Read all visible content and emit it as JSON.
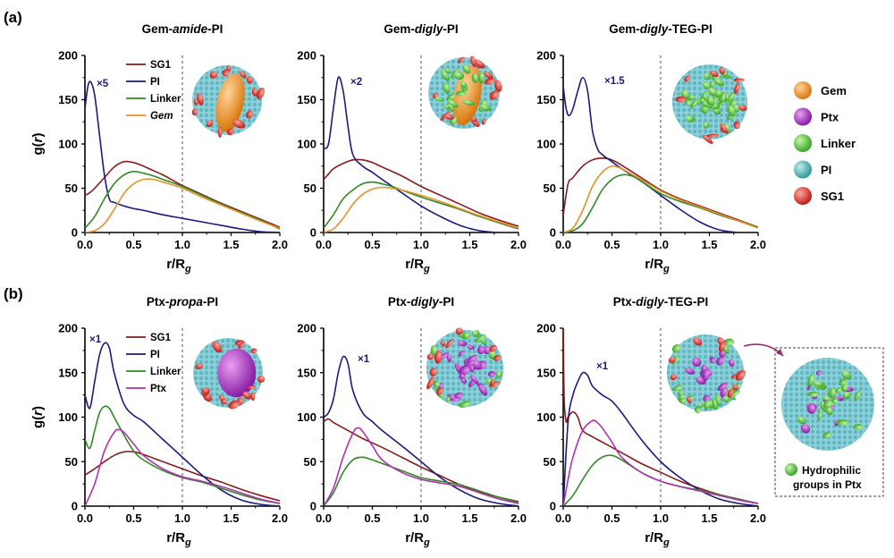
{
  "figure": {
    "row_labels": [
      "(a)",
      "(b)"
    ],
    "xlabel_main": "r/R",
    "xlabel_sub": "g",
    "ylabel_g": "g(",
    "ylabel_r": "r",
    "ylabel_close": ")",
    "insets": {
      "a_left": "Gem-amide-PI micelle snapshot",
      "a_mid": "Gem-digly-PI micelle snapshot",
      "a_right": "Gem-digly-TEG-PI micelle snapshot",
      "b_left": "Ptx-propa-PI micelle snapshot",
      "b_mid": "Ptx-digly-PI micelle snapshot",
      "b_right": "Ptx-digly-TEG-PI micelle snapshot",
      "zoom": "Zoomed Ptx-digly-TEG-PI micelle snapshot"
    },
    "colors": {
      "SG1": "#8b1a1a",
      "PI": "#1a1a80",
      "Linker": "#2e8b22",
      "Gem": "#e8902a",
      "Ptx": "#b030b0"
    }
  },
  "side_legend": {
    "items": [
      {
        "label": "Gem",
        "color": "#e8902a"
      },
      {
        "label": "Ptx",
        "color": "#a030c0"
      },
      {
        "label": "Linker",
        "color": "#5ecb3a"
      },
      {
        "label": "PI",
        "color": "#4fb3b3"
      },
      {
        "label": "SG1",
        "color": "#d83a30"
      }
    ],
    "zoom_caption_1": "Hydrophilic",
    "zoom_caption_2": "groups in Ptx"
  },
  "chart_data": [
    {
      "type": "line",
      "id": "a1",
      "title_pre": "Gem-",
      "title_ital": "amide",
      "title_post": "-PI",
      "xlim": [
        0,
        2.0
      ],
      "ylim": [
        0,
        200
      ],
      "xticks": [
        "0.0",
        "0.5",
        "1.0",
        "1.5",
        "2.0"
      ],
      "yticks": [
        "0",
        "50",
        "100",
        "150",
        "200"
      ],
      "scale_label": "×5",
      "legend": [
        "SG1",
        "PI",
        "Linker",
        "Gem"
      ],
      "legend_italic": [
        "Gem"
      ],
      "series": [
        {
          "name": "SG1",
          "x": [
            0,
            0.05,
            0.1,
            0.2,
            0.3,
            0.4,
            0.5,
            0.6,
            0.7,
            0.8,
            0.9,
            1.0,
            1.2,
            1.4,
            1.6,
            1.8,
            2.0
          ],
          "y": [
            42,
            45,
            50,
            62,
            74,
            80,
            79,
            75,
            70,
            65,
            59,
            53,
            43,
            33,
            24,
            15,
            6
          ]
        },
        {
          "name": "PI",
          "x": [
            0,
            0.03,
            0.06,
            0.1,
            0.15,
            0.2,
            0.25,
            0.3,
            0.4,
            0.5,
            0.6,
            0.8,
            1.0,
            1.2,
            1.4,
            1.6,
            1.8,
            2.0
          ],
          "y": [
            140,
            165,
            170,
            155,
            110,
            65,
            38,
            34,
            30,
            27,
            25,
            20,
            16,
            12,
            8,
            4,
            1,
            0
          ]
        },
        {
          "name": "Linker",
          "x": [
            0,
            0.1,
            0.2,
            0.3,
            0.4,
            0.5,
            0.6,
            0.7,
            0.8,
            1.0,
            1.2,
            1.4,
            1.6,
            1.8,
            2.0
          ],
          "y": [
            5,
            18,
            38,
            55,
            65,
            69,
            67,
            64,
            60,
            52,
            42,
            32,
            23,
            14,
            4
          ]
        },
        {
          "name": "Gem",
          "x": [
            0,
            0.1,
            0.2,
            0.3,
            0.4,
            0.5,
            0.6,
            0.7,
            0.8,
            1.0,
            1.2,
            1.4,
            1.6,
            1.8,
            2.0
          ],
          "y": [
            0,
            2,
            10,
            26,
            44,
            55,
            60,
            60,
            57,
            50,
            40,
            31,
            22,
            13,
            5
          ]
        }
      ]
    },
    {
      "type": "line",
      "id": "a2",
      "title_pre": "Gem-",
      "title_ital": "digly",
      "title_post": "-PI",
      "xlim": [
        0,
        2.0
      ],
      "ylim": [
        0,
        200
      ],
      "xticks": [
        "0.0",
        "0.5",
        "1.0",
        "1.5",
        "2.0"
      ],
      "yticks": [
        "0",
        "50",
        "100",
        "150",
        "200"
      ],
      "scale_label": "×2",
      "legend": [],
      "legend_italic": [],
      "series": [
        {
          "name": "SG1",
          "x": [
            0,
            0.05,
            0.1,
            0.2,
            0.3,
            0.4,
            0.5,
            0.6,
            0.8,
            1.0,
            1.2,
            1.4,
            1.6,
            1.8,
            2.0
          ],
          "y": [
            60,
            66,
            72,
            78,
            82,
            82,
            79,
            74,
            64,
            52,
            42,
            32,
            22,
            14,
            7
          ]
        },
        {
          "name": "PI",
          "x": [
            0,
            0.05,
            0.1,
            0.15,
            0.2,
            0.25,
            0.3,
            0.4,
            0.5,
            0.6,
            0.8,
            1.0,
            1.2,
            1.4,
            1.6,
            1.8,
            2.0
          ],
          "y": [
            95,
            100,
            140,
            175,
            160,
            120,
            88,
            75,
            68,
            60,
            45,
            30,
            18,
            8,
            2,
            0,
            0
          ]
        },
        {
          "name": "Linker",
          "x": [
            0,
            0.1,
            0.2,
            0.3,
            0.4,
            0.5,
            0.6,
            0.7,
            0.8,
            1.0,
            1.2,
            1.4,
            1.6,
            1.8,
            2.0
          ],
          "y": [
            5,
            20,
            38,
            48,
            55,
            57,
            55,
            52,
            48,
            40,
            33,
            26,
            18,
            11,
            4
          ]
        },
        {
          "name": "Gem",
          "x": [
            0,
            0.1,
            0.2,
            0.3,
            0.4,
            0.5,
            0.6,
            0.7,
            0.8,
            1.0,
            1.2,
            1.4,
            1.6,
            1.8,
            2.0
          ],
          "y": [
            0,
            4,
            16,
            32,
            43,
            49,
            51,
            50,
            48,
            42,
            35,
            27,
            19,
            12,
            5
          ]
        }
      ]
    },
    {
      "type": "line",
      "id": "a3",
      "title_pre": "Gem-",
      "title_ital": "digly",
      "title_post": "-TEG-PI",
      "xlim": [
        0,
        2.0
      ],
      "ylim": [
        0,
        200
      ],
      "xticks": [
        "0.0",
        "0.5",
        "1.0",
        "1.5",
        "2.0"
      ],
      "yticks": [
        "0",
        "50",
        "100",
        "150",
        "200"
      ],
      "scale_label": "×1.5",
      "legend": [],
      "legend_italic": [],
      "series": [
        {
          "name": "SG1",
          "x": [
            0,
            0.05,
            0.1,
            0.2,
            0.3,
            0.4,
            0.5,
            0.6,
            0.8,
            1.0,
            1.2,
            1.4,
            1.6,
            1.8,
            2.0
          ],
          "y": [
            20,
            55,
            62,
            75,
            82,
            84,
            82,
            76,
            62,
            48,
            38,
            30,
            22,
            14,
            6
          ]
        },
        {
          "name": "PI",
          "x": [
            0,
            0.03,
            0.06,
            0.1,
            0.15,
            0.2,
            0.25,
            0.3,
            0.35,
            0.4,
            0.5,
            0.6,
            0.8,
            1.0,
            1.2,
            1.4,
            1.6,
            1.8,
            2.0
          ],
          "y": [
            165,
            140,
            132,
            140,
            160,
            175,
            160,
            115,
            95,
            88,
            80,
            72,
            58,
            42,
            26,
            12,
            3,
            0,
            0
          ]
        },
        {
          "name": "Linker",
          "x": [
            0,
            0.1,
            0.2,
            0.3,
            0.4,
            0.5,
            0.6,
            0.7,
            0.8,
            1.0,
            1.2,
            1.4,
            1.6,
            1.8,
            2.0
          ],
          "y": [
            0,
            2,
            10,
            28,
            48,
            60,
            65,
            64,
            58,
            44,
            35,
            28,
            20,
            13,
            6
          ]
        },
        {
          "name": "Gem",
          "x": [
            0,
            0.1,
            0.2,
            0.3,
            0.4,
            0.5,
            0.6,
            0.7,
            0.8,
            1.0,
            1.2,
            1.4,
            1.6,
            1.8,
            2.0
          ],
          "y": [
            0,
            5,
            25,
            52,
            68,
            75,
            72,
            66,
            60,
            47,
            37,
            29,
            21,
            13,
            5
          ]
        }
      ]
    },
    {
      "type": "line",
      "id": "b1",
      "title_pre": "Ptx-",
      "title_ital": "propa",
      "title_post": "-PI",
      "xlim": [
        0,
        2.0
      ],
      "ylim": [
        0,
        200
      ],
      "xticks": [
        "0.0",
        "0.5",
        "1.0",
        "1.5",
        "2.0"
      ],
      "yticks": [
        "0",
        "50",
        "100",
        "150",
        "200"
      ],
      "scale_label": "×1",
      "legend": [
        "SG1",
        "PI",
        "Linker",
        "Ptx"
      ],
      "legend_italic": [],
      "series": [
        {
          "name": "SG1",
          "x": [
            0,
            0.1,
            0.2,
            0.3,
            0.4,
            0.5,
            0.6,
            0.8,
            1.0,
            1.2,
            1.4,
            1.6,
            1.8,
            2.0
          ],
          "y": [
            35,
            42,
            50,
            57,
            61,
            61,
            58,
            50,
            42,
            34,
            27,
            19,
            12,
            6
          ]
        },
        {
          "name": "PI",
          "x": [
            0,
            0.05,
            0.1,
            0.15,
            0.2,
            0.25,
            0.3,
            0.4,
            0.5,
            0.6,
            0.8,
            1.0,
            1.2,
            1.4,
            1.6,
            1.8,
            2.0
          ],
          "y": [
            125,
            110,
            140,
            170,
            183,
            178,
            150,
            115,
            102,
            95,
            75,
            55,
            35,
            18,
            7,
            2,
            0
          ]
        },
        {
          "name": "Linker",
          "x": [
            0,
            0.05,
            0.1,
            0.15,
            0.2,
            0.25,
            0.3,
            0.4,
            0.5,
            0.6,
            0.8,
            1.0,
            1.2,
            1.4,
            1.6,
            1.8,
            2.0
          ],
          "y": [
            75,
            65,
            85,
            105,
            112,
            110,
            100,
            80,
            62,
            52,
            40,
            32,
            27,
            20,
            13,
            7,
            3
          ]
        },
        {
          "name": "Ptx",
          "x": [
            0,
            0.1,
            0.2,
            0.3,
            0.35,
            0.4,
            0.5,
            0.6,
            0.8,
            1.0,
            1.2,
            1.4,
            1.6,
            1.8,
            2.0
          ],
          "y": [
            0,
            25,
            62,
            83,
            86,
            83,
            70,
            57,
            42,
            33,
            28,
            22,
            15,
            8,
            3
          ]
        }
      ]
    },
    {
      "type": "line",
      "id": "b2",
      "title_pre": "Ptx-",
      "title_ital": "digly",
      "title_post": "-PI",
      "xlim": [
        0,
        2.0
      ],
      "ylim": [
        0,
        200
      ],
      "xticks": [
        "0.0",
        "0.5",
        "1.0",
        "1.5",
        "2.0"
      ],
      "yticks": [
        "0",
        "50",
        "100",
        "150",
        "200"
      ],
      "scale_label": "×1",
      "legend": [],
      "legend_italic": [],
      "series": [
        {
          "name": "SG1",
          "x": [
            0,
            0.05,
            0.1,
            0.2,
            0.3,
            0.4,
            0.6,
            0.8,
            1.0,
            1.2,
            1.4,
            1.6,
            1.8,
            2.0
          ],
          "y": [
            95,
            98,
            94,
            88,
            82,
            76,
            66,
            55,
            44,
            34,
            24,
            16,
            10,
            5
          ]
        },
        {
          "name": "PI",
          "x": [
            0,
            0.05,
            0.1,
            0.15,
            0.2,
            0.25,
            0.3,
            0.4,
            0.5,
            0.6,
            0.8,
            1.0,
            1.2,
            1.4,
            1.6,
            1.8,
            2.0
          ],
          "y": [
            100,
            105,
            120,
            150,
            168,
            160,
            130,
            105,
            95,
            85,
            68,
            50,
            32,
            18,
            8,
            3,
            0
          ]
        },
        {
          "name": "Linker",
          "x": [
            0,
            0.1,
            0.2,
            0.3,
            0.4,
            0.5,
            0.6,
            0.8,
            1.0,
            1.2,
            1.4,
            1.6,
            1.8,
            2.0
          ],
          "y": [
            0,
            15,
            38,
            52,
            55,
            52,
            48,
            40,
            32,
            28,
            24,
            17,
            10,
            4
          ]
        },
        {
          "name": "Ptx",
          "x": [
            0,
            0.1,
            0.2,
            0.3,
            0.35,
            0.4,
            0.5,
            0.6,
            0.8,
            1.0,
            1.2,
            1.4,
            1.6,
            1.8,
            2.0
          ],
          "y": [
            0,
            20,
            55,
            82,
            88,
            84,
            68,
            52,
            38,
            30,
            26,
            22,
            15,
            8,
            3
          ]
        }
      ]
    },
    {
      "type": "line",
      "id": "b3",
      "title_pre": "Ptx-",
      "title_ital": "digly",
      "title_post": "-TEG-PI",
      "xlim": [
        0,
        2.0
      ],
      "ylim": [
        0,
        200
      ],
      "xticks": [
        "0.0",
        "0.5",
        "1.0",
        "1.5",
        "2.0"
      ],
      "yticks": [
        "0",
        "50",
        "100",
        "150",
        "200"
      ],
      "scale_label": "×1",
      "legend": [],
      "legend_italic": [],
      "series": [
        {
          "name": "SG1",
          "x": [
            0,
            0.01,
            0.03,
            0.05,
            0.1,
            0.15,
            0.2,
            0.3,
            0.4,
            0.6,
            0.8,
            1.0,
            1.2,
            1.4,
            1.6,
            1.8,
            2.0
          ],
          "y": [
            200,
            120,
            95,
            100,
            106,
            100,
            85,
            78,
            72,
            60,
            48,
            38,
            28,
            20,
            13,
            7,
            3
          ]
        },
        {
          "name": "PI",
          "x": [
            0,
            0.05,
            0.1,
            0.15,
            0.2,
            0.25,
            0.3,
            0.4,
            0.5,
            0.6,
            0.8,
            1.0,
            1.2,
            1.4,
            1.6,
            1.8,
            2.0
          ],
          "y": [
            0,
            95,
            125,
            140,
            150,
            147,
            135,
            125,
            118,
            105,
            75,
            50,
            32,
            18,
            8,
            3,
            0
          ]
        },
        {
          "name": "Linker",
          "x": [
            0,
            0.1,
            0.2,
            0.3,
            0.4,
            0.5,
            0.6,
            0.8,
            1.0,
            1.2,
            1.4,
            1.6,
            1.8,
            2.0
          ],
          "y": [
            0,
            12,
            30,
            46,
            55,
            57,
            52,
            38,
            28,
            22,
            18,
            13,
            8,
            3
          ]
        },
        {
          "name": "Ptx",
          "x": [
            0,
            0.05,
            0.1,
            0.2,
            0.3,
            0.35,
            0.4,
            0.5,
            0.6,
            0.8,
            1.0,
            1.2,
            1.4,
            1.6,
            1.8,
            2.0
          ],
          "y": [
            0,
            30,
            55,
            85,
            96,
            94,
            88,
            72,
            55,
            38,
            28,
            22,
            17,
            12,
            7,
            3
          ]
        }
      ]
    }
  ]
}
